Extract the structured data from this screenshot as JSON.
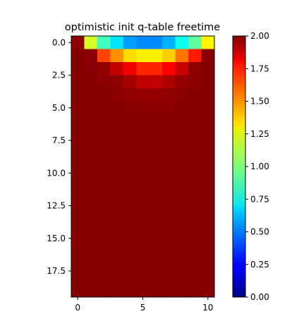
{
  "chart_data": {
    "type": "heatmap",
    "title": "optimistic init q-table freetime",
    "xlabel": "",
    "ylabel": "",
    "n_cols": 11,
    "n_rows": 20,
    "x_ticks": [
      {
        "value": 0,
        "label": "0"
      },
      {
        "value": 5,
        "label": "5"
      },
      {
        "value": 10,
        "label": "10"
      }
    ],
    "y_ticks": [
      {
        "value": 0,
        "label": "0.0"
      },
      {
        "value": 2.5,
        "label": "2.5"
      },
      {
        "value": 5,
        "label": "5.0"
      },
      {
        "value": 7.5,
        "label": "7.5"
      },
      {
        "value": 10,
        "label": "10.0"
      },
      {
        "value": 12.5,
        "label": "12.5"
      },
      {
        "value": 15,
        "label": "15.0"
      },
      {
        "value": 17.5,
        "label": "17.5"
      }
    ],
    "colorbar": {
      "colormap": "jet",
      "min": 0,
      "max": 2,
      "ticks": [
        "0.00",
        "0.25",
        "0.50",
        "0.75",
        "1.00",
        "1.25",
        "1.50",
        "1.75",
        "2.00"
      ]
    },
    "values": [
      [
        1.97,
        1.17,
        0.88,
        0.7,
        0.56,
        0.52,
        0.52,
        0.6,
        0.78,
        0.94,
        1.27
      ],
      [
        1.99,
        1.98,
        1.62,
        1.47,
        1.32,
        1.28,
        1.28,
        1.34,
        1.52,
        1.7,
        1.98
      ],
      [
        1.99,
        1.98,
        1.96,
        1.87,
        1.78,
        1.68,
        1.68,
        1.76,
        1.86,
        1.97,
        1.99
      ],
      [
        1.99,
        1.99,
        1.98,
        1.97,
        1.92,
        1.88,
        1.87,
        1.91,
        1.96,
        1.98,
        1.99
      ],
      [
        1.99,
        1.99,
        1.99,
        1.98,
        1.97,
        1.96,
        1.96,
        1.97,
        1.98,
        1.99,
        1.99
      ],
      [
        1.99,
        1.99,
        1.99,
        1.99,
        1.98,
        1.98,
        1.98,
        1.98,
        1.99,
        1.99,
        1.99
      ],
      [
        1.99,
        1.99,
        1.99,
        1.99,
        1.99,
        1.99,
        1.99,
        1.99,
        1.99,
        1.99,
        1.99
      ],
      [
        1.99,
        1.99,
        1.99,
        1.99,
        1.99,
        1.99,
        1.99,
        1.99,
        1.99,
        1.99,
        1.99
      ],
      [
        1.99,
        1.99,
        1.99,
        1.99,
        1.99,
        1.99,
        1.99,
        1.99,
        1.99,
        1.99,
        1.99
      ],
      [
        1.99,
        1.99,
        1.99,
        1.99,
        1.99,
        1.99,
        1.99,
        1.99,
        1.99,
        1.99,
        1.99
      ],
      [
        1.99,
        1.99,
        1.99,
        1.99,
        1.99,
        1.99,
        1.99,
        1.99,
        1.99,
        1.99,
        1.99
      ],
      [
        1.99,
        1.99,
        1.99,
        1.99,
        1.99,
        1.99,
        1.99,
        1.99,
        1.99,
        1.99,
        1.99
      ],
      [
        1.99,
        1.99,
        1.99,
        1.99,
        1.99,
        1.99,
        1.99,
        1.99,
        1.99,
        1.99,
        1.99
      ],
      [
        1.99,
        1.99,
        1.99,
        1.99,
        1.99,
        1.99,
        1.99,
        1.99,
        1.99,
        1.99,
        1.99
      ],
      [
        1.99,
        1.99,
        1.99,
        1.99,
        1.99,
        1.99,
        1.99,
        1.99,
        1.99,
        1.99,
        1.99
      ],
      [
        1.99,
        1.99,
        1.99,
        1.99,
        1.99,
        1.99,
        1.99,
        1.99,
        1.99,
        1.99,
        1.99
      ],
      [
        1.99,
        1.99,
        1.99,
        1.99,
        1.99,
        1.99,
        1.99,
        1.99,
        1.99,
        1.99,
        1.99
      ],
      [
        1.99,
        1.99,
        1.99,
        1.99,
        1.99,
        1.99,
        1.99,
        1.99,
        1.99,
        1.99,
        1.99
      ],
      [
        1.99,
        1.99,
        1.99,
        1.99,
        1.99,
        1.99,
        1.99,
        1.99,
        1.99,
        1.99,
        1.99
      ],
      [
        1.99,
        1.99,
        1.99,
        1.99,
        1.99,
        1.99,
        1.99,
        1.99,
        1.99,
        1.99,
        1.99
      ]
    ]
  }
}
